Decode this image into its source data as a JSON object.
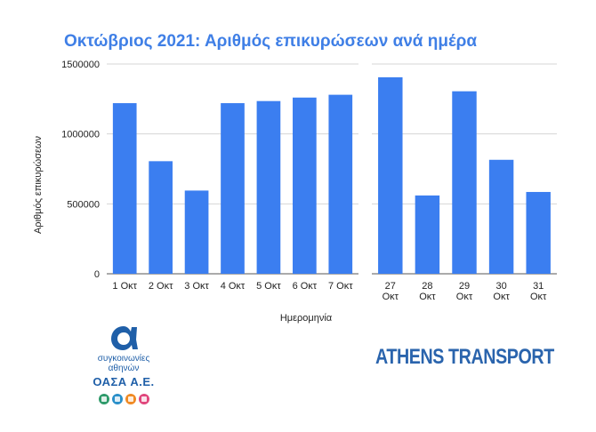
{
  "chart_data": {
    "type": "bar",
    "title": "Οκτώβριος 2021: Αριθμός επικυρώσεων ανά ημέρα",
    "xlabel": "Ημερομηνία",
    "ylabel": "Αριθμός επικυρώσεων",
    "ylim": [
      0,
      1500000
    ],
    "yticks": [
      "0",
      "500000",
      "1000000",
      "1500000"
    ],
    "grid": true,
    "panels": [
      {
        "categories": [
          "1 Οκτ",
          "2 Οκτ",
          "3 Οκτ",
          "4 Οκτ",
          "5 Οκτ",
          "6 Οκτ",
          "7 Οκτ"
        ],
        "values": [
          1220000,
          805000,
          595000,
          1220000,
          1235000,
          1260000,
          1280000
        ]
      },
      {
        "categories": [
          "27 Οκτ",
          "28 Οκτ",
          "29 Οκτ",
          "30 Οκτ",
          "31 Οκτ"
        ],
        "values": [
          1405000,
          560000,
          1305000,
          815000,
          585000
        ]
      }
    ],
    "bar_color": "#3b7ef0"
  },
  "logo": {
    "line1": "συγκοινωνίες",
    "line2": "αθηνών",
    "name": "ΟΑΣΑ Α.Ε.",
    "icons": [
      {
        "name": "metro-icon",
        "color": "#2e9a6a"
      },
      {
        "name": "bus-icon",
        "color": "#2a8fc9"
      },
      {
        "name": "trolley-icon",
        "color": "#f08a24"
      },
      {
        "name": "tram-icon",
        "color": "#e0467c"
      }
    ]
  },
  "brand": "ATHENS TRANSPORT"
}
